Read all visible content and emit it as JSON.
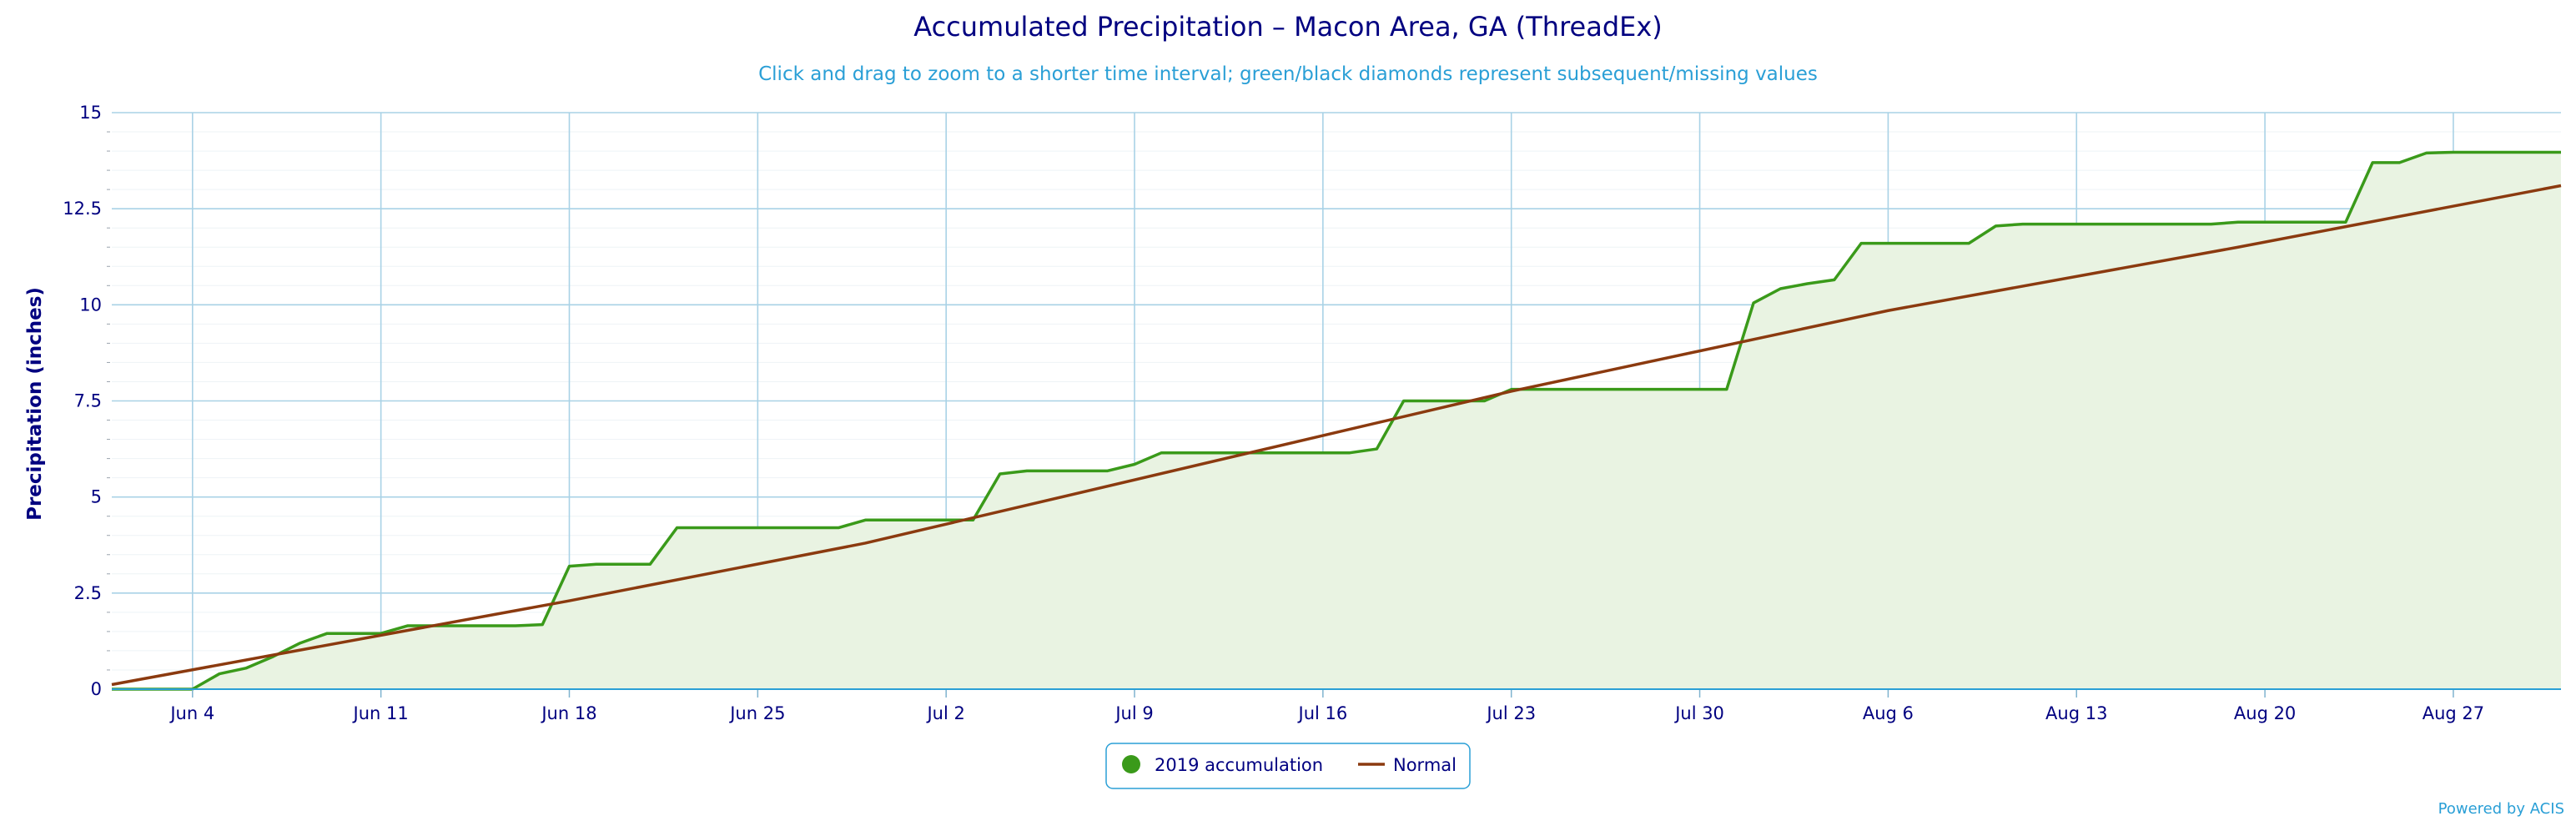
{
  "chart_data": {
    "type": "line",
    "title": "Accumulated Precipitation – Macon Area, GA (ThreadEx)",
    "subtitle": "Click and drag to zoom to a shorter time interval; green/black diamonds represent subsequent/missing values",
    "ylabel": "Precipitation (inches)",
    "xlabel": "",
    "ylim": [
      0,
      15
    ],
    "y_ticks": [
      0,
      2.5,
      5,
      7.5,
      10,
      12.5,
      15
    ],
    "y_tick_labels": [
      "0",
      "2.5",
      "5",
      "7.5",
      "10",
      "12.5",
      "15"
    ],
    "x_start": "Jun 1",
    "x_end": "Aug 31",
    "x_ticks": [
      "Jun 4",
      "Jun 11",
      "Jun 18",
      "Jun 25",
      "Jul 2",
      "Jul 9",
      "Jul 16",
      "Jul 23",
      "Jul 30",
      "Aug 6",
      "Aug 13",
      "Aug 20",
      "Aug 27"
    ],
    "grid": true,
    "legend_position": "bottom-center",
    "series": [
      {
        "name": "2019 accumulation",
        "color": "#3a9a1a",
        "fill": "#e9f3e2",
        "points": [
          [
            "Jun 1",
            0.0
          ],
          [
            "Jun 2",
            0.0
          ],
          [
            "Jun 3",
            0.0
          ],
          [
            "Jun 4",
            0.0
          ],
          [
            "Jun 5",
            0.4
          ],
          [
            "Jun 6",
            0.55
          ],
          [
            "Jun 7",
            0.85
          ],
          [
            "Jun 8",
            1.2
          ],
          [
            "Jun 9",
            1.45
          ],
          [
            "Jun 10",
            1.45
          ],
          [
            "Jun 11",
            1.45
          ],
          [
            "Jun 12",
            1.65
          ],
          [
            "Jun 13",
            1.65
          ],
          [
            "Jun 14",
            1.65
          ],
          [
            "Jun 15",
            1.65
          ],
          [
            "Jun 16",
            1.65
          ],
          [
            "Jun 17",
            1.68
          ],
          [
            "Jun 18",
            3.2
          ],
          [
            "Jun 19",
            3.25
          ],
          [
            "Jun 20",
            3.25
          ],
          [
            "Jun 21",
            3.25
          ],
          [
            "Jun 22",
            4.2
          ],
          [
            "Jun 23",
            4.2
          ],
          [
            "Jun 28",
            4.2
          ],
          [
            "Jun 29",
            4.4
          ],
          [
            "Jun 30",
            4.4
          ],
          [
            "Jul 3",
            4.4
          ],
          [
            "Jul 4",
            5.6
          ],
          [
            "Jul 5",
            5.68
          ],
          [
            "Jul 6",
            5.68
          ],
          [
            "Jul 8",
            5.68
          ],
          [
            "Jul 9",
            5.85
          ],
          [
            "Jul 10",
            6.15
          ],
          [
            "Jul 11",
            6.15
          ],
          [
            "Jul 17",
            6.15
          ],
          [
            "Jul 18",
            6.25
          ],
          [
            "Jul 19",
            7.5
          ],
          [
            "Jul 20",
            7.5
          ],
          [
            "Jul 22",
            7.5
          ],
          [
            "Jul 23",
            7.8
          ],
          [
            "Jul 31",
            7.8
          ],
          [
            "Aug 1",
            10.05
          ],
          [
            "Aug 2",
            10.42
          ],
          [
            "Aug 3",
            10.55
          ],
          [
            "Aug 4",
            10.65
          ],
          [
            "Aug 5",
            11.6
          ],
          [
            "Aug 6",
            11.6
          ],
          [
            "Aug 9",
            11.6
          ],
          [
            "Aug 10",
            12.05
          ],
          [
            "Aug 11",
            12.1
          ],
          [
            "Aug 18",
            12.1
          ],
          [
            "Aug 19",
            12.15
          ],
          [
            "Aug 23",
            12.15
          ],
          [
            "Aug 24",
            13.7
          ],
          [
            "Aug 25",
            13.7
          ],
          [
            "Aug 26",
            13.95
          ],
          [
            "Aug 27",
            13.97
          ],
          [
            "Aug 31",
            13.97
          ]
        ]
      },
      {
        "name": "Normal",
        "color": "#8b3a0f",
        "points": [
          [
            "Jun 1",
            0.12
          ],
          [
            "Jun 18",
            2.3
          ],
          [
            "Jun 29",
            3.8
          ],
          [
            "Jul 23",
            7.75
          ],
          [
            "Aug 6",
            9.85
          ],
          [
            "Aug 19",
            11.5
          ],
          [
            "Aug 31",
            13.1
          ]
        ]
      }
    ]
  },
  "credits": "Powered by ACIS"
}
